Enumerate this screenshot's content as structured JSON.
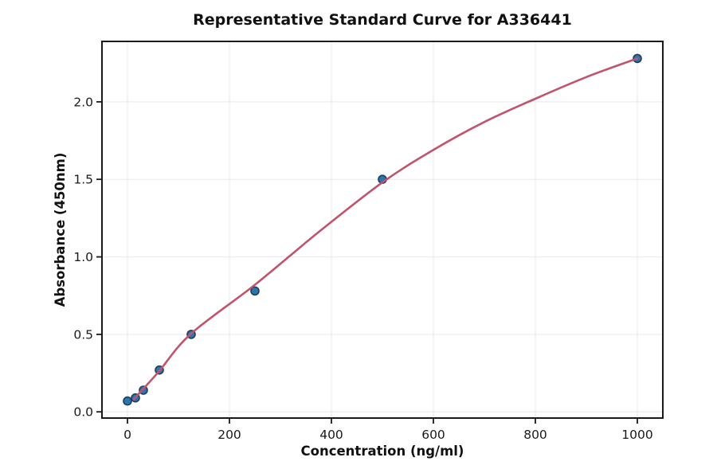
{
  "figure": {
    "background": "#ffffff"
  },
  "chart_data": {
    "type": "scatter",
    "title": "Representative Standard Curve for A336441",
    "xlabel": "Concentration (ng/ml)",
    "ylabel": "Absorbance (450nm)",
    "xlim": [
      -50,
      1050
    ],
    "ylim": [
      -0.04,
      2.39
    ],
    "grid": true,
    "legend_position": "none",
    "x_ticks": [
      0,
      200,
      400,
      600,
      800,
      1000
    ],
    "x_tick_labels": [
      "0",
      "200",
      "400",
      "600",
      "800",
      "1000"
    ],
    "y_ticks": [
      0.0,
      0.5,
      1.0,
      1.5,
      2.0
    ],
    "y_tick_labels": [
      "0.0",
      "0.5",
      "1.0",
      "1.5",
      "2.0"
    ],
    "series": [
      {
        "name": "standard-points",
        "type": "scatter",
        "marker": "circle",
        "points": [
          [
            0,
            0.07
          ],
          [
            15.6,
            0.09
          ],
          [
            31.25,
            0.14
          ],
          [
            62.5,
            0.27
          ],
          [
            125,
            0.5
          ],
          [
            250,
            0.78
          ],
          [
            500,
            1.5
          ],
          [
            1000,
            2.28
          ]
        ]
      },
      {
        "name": "fit-curve",
        "type": "line",
        "points": [
          [
            12,
            0.08
          ],
          [
            31,
            0.148
          ],
          [
            62,
            0.262
          ],
          [
            125,
            0.505
          ],
          [
            250,
            0.82
          ],
          [
            375,
            1.16
          ],
          [
            500,
            1.48
          ],
          [
            600,
            1.69
          ],
          [
            700,
            1.87
          ],
          [
            800,
            2.02
          ],
          [
            900,
            2.16
          ],
          [
            1000,
            2.28
          ]
        ]
      }
    ],
    "colors": {
      "point_fill": "#2c76b0",
      "point_edge": "#1d3e5a",
      "curve": "#c0546c",
      "grid": "#e9e9e9",
      "spine": "#1a1a1a",
      "text": "#111111",
      "background": "#ffffff"
    }
  }
}
